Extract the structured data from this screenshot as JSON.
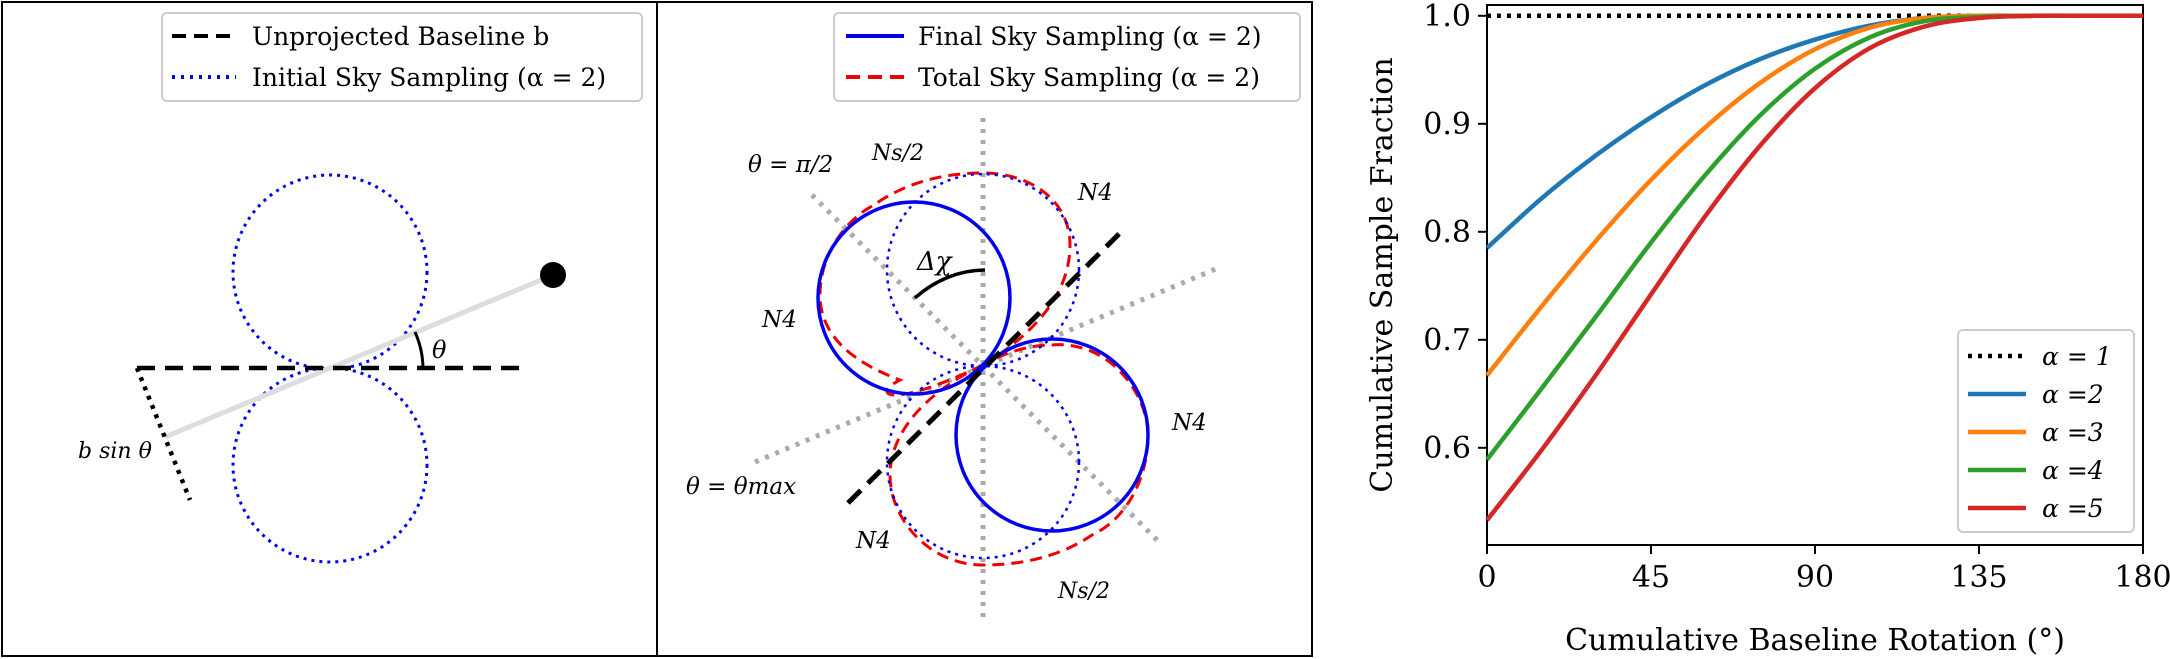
{
  "panel1": {
    "legend": [
      {
        "label": "Unprojected Baseline b",
        "style": "dashed",
        "color": "#000000"
      },
      {
        "label": "Initial Sky Sampling (α = 2)",
        "style": "dotted",
        "color": "#0000ee"
      }
    ],
    "theta_label": "θ",
    "bsin_label": "b sin θ"
  },
  "panel2": {
    "legend": [
      {
        "label": "Final Sky Sampling (α = 2)",
        "style": "solid",
        "color": "#0000ee"
      },
      {
        "label": "Total Sky Sampling (α = 2)",
        "style": "dashed",
        "color": "#ee0000"
      }
    ],
    "theta_half_pi_label": "θ = π/2",
    "theta_max_label": "θ = θmax",
    "ns_half_label": "Ns/2",
    "n4_label": "N4",
    "dchi_label": "Δχ"
  },
  "chart_data": {
    "type": "line",
    "xlabel": "Cumulative Baseline Rotation (°)",
    "ylabel": "Cumulative Sample Fraction",
    "xlim": [
      0,
      180
    ],
    "ylim": [
      0.51,
      1.01
    ],
    "xticks": [
      0,
      45,
      90,
      135,
      180
    ],
    "yticks": [
      0.6,
      0.7,
      0.8,
      0.9,
      1.0
    ],
    "xtick_labels": [
      "0",
      "45",
      "90",
      "135",
      "180"
    ],
    "ytick_labels": [
      "0.6",
      "0.7",
      "0.8",
      "0.9",
      "1.0"
    ],
    "legend_position": "bottom-right",
    "grid": false,
    "x": [
      0,
      15,
      30,
      45,
      60,
      75,
      90,
      105,
      120,
      135,
      150,
      165,
      180
    ],
    "series": [
      {
        "name": "α = 1",
        "color": "#000000",
        "style": "dotted",
        "values": [
          1.0,
          1.0,
          1.0,
          1.0,
          1.0,
          1.0,
          1.0,
          1.0,
          1.0,
          1.0,
          1.0,
          1.0,
          1.0
        ]
      },
      {
        "name": "α =2",
        "color": "#1f77b4",
        "style": "solid",
        "values": [
          0.785,
          0.831,
          0.871,
          0.906,
          0.936,
          0.96,
          0.978,
          0.991,
          0.998,
          1.0,
          1.0,
          1.0,
          1.0
        ]
      },
      {
        "name": "α =3",
        "color": "#ff7f0e",
        "style": "solid",
        "values": [
          0.667,
          0.731,
          0.792,
          0.848,
          0.897,
          0.938,
          0.969,
          0.989,
          0.998,
          1.0,
          1.0,
          1.0,
          1.0
        ]
      },
      {
        "name": "α =4",
        "color": "#2ca02c",
        "style": "solid",
        "values": [
          0.589,
          0.655,
          0.722,
          0.79,
          0.853,
          0.908,
          0.951,
          0.98,
          0.995,
          0.999,
          1.0,
          1.0,
          1.0
        ]
      },
      {
        "name": "α =5",
        "color": "#d62728",
        "style": "solid",
        "values": [
          0.533,
          0.598,
          0.668,
          0.742,
          0.815,
          0.88,
          0.933,
          0.97,
          0.99,
          0.998,
          1.0,
          1.0,
          1.0
        ]
      }
    ]
  }
}
